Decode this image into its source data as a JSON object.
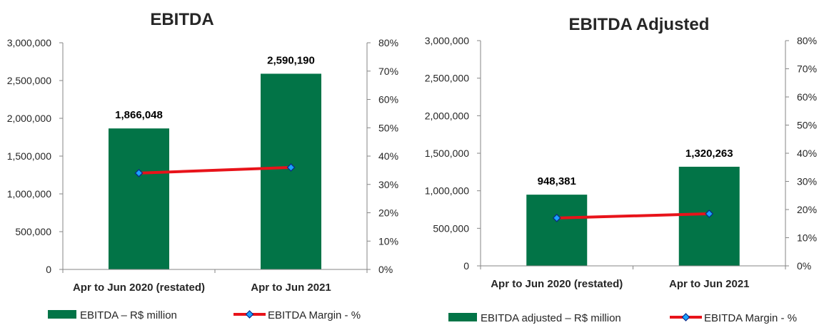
{
  "chart_data": [
    {
      "type": "bar",
      "title": "EBITDA",
      "categories": [
        "Apr to Jun 2020 (restated)",
        "Apr to Jun 2021"
      ],
      "series": [
        {
          "name": "EBITDA – R$ million",
          "type": "bar",
          "axis": "left",
          "values": [
            1866048,
            2590190
          ],
          "labels": [
            "1,866,048",
            "2,590,190"
          ],
          "color": "#027447"
        },
        {
          "name": "EBITDA Margin  - %",
          "type": "line",
          "axis": "right",
          "values": [
            34,
            36
          ],
          "color": "#e8131a",
          "marker_color": "#1aa3ff"
        }
      ],
      "ylim": [
        0,
        3000000
      ],
      "yticks": [
        "0",
        "500,000",
        "1,000,000",
        "1,500,000",
        "2,000,000",
        "2,500,000",
        "3,000,000"
      ],
      "y2lim": [
        0,
        80
      ],
      "y2ticks": [
        "0%",
        "10%",
        "20%",
        "30%",
        "40%",
        "50%",
        "60%",
        "70%",
        "80%"
      ],
      "grid": false,
      "legend": "bottom"
    },
    {
      "type": "bar",
      "title": "EBITDA Adjusted",
      "categories": [
        "Apr to Jun 2020 (restated)",
        "Apr to Jun 2021"
      ],
      "series": [
        {
          "name": "EBITDA adjusted  – R$ million",
          "type": "bar",
          "axis": "left",
          "values": [
            948381,
            1320263
          ],
          "labels": [
            "948,381",
            "1,320,263"
          ],
          "color": "#027447"
        },
        {
          "name": "EBITDA Margin  - %",
          "type": "line",
          "axis": "right",
          "values": [
            17,
            18.5
          ],
          "color": "#e8131a",
          "marker_color": "#1aa3ff"
        }
      ],
      "ylim": [
        0,
        3000000
      ],
      "yticks": [
        "0",
        "500,000",
        "1,000,000",
        "1,500,000",
        "2,000,000",
        "2,500,000",
        "3,000,000"
      ],
      "y2lim": [
        0,
        80
      ],
      "y2ticks": [
        "0%",
        "10%",
        "20%",
        "30%",
        "40%",
        "50%",
        "60%",
        "70%",
        "80%"
      ],
      "grid": false,
      "legend": "bottom"
    }
  ]
}
